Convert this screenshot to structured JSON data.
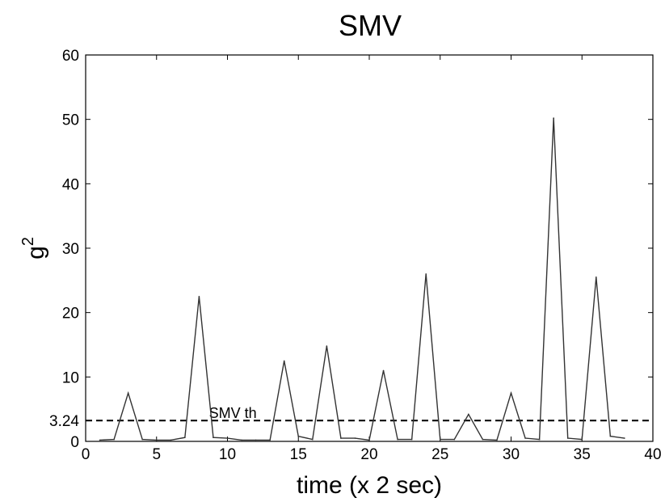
{
  "chart_data": {
    "type": "line",
    "title": "SMV",
    "xlabel": "time (x 2 sec)",
    "ylabel": "g",
    "ylabel_superscript": "2",
    "xlim": [
      0,
      40
    ],
    "ylim": [
      0,
      60
    ],
    "xticks": [
      0,
      5,
      10,
      15,
      20,
      25,
      30,
      35,
      40
    ],
    "yticks": [
      0,
      10,
      20,
      30,
      40,
      50,
      60
    ],
    "extra_ytick": {
      "value": 3.24,
      "label": "3.24"
    },
    "threshold": {
      "value": 3.24,
      "label": "SMV th",
      "style": "dashed"
    },
    "grid": false,
    "series": [
      {
        "x": [
          1,
          2,
          3,
          4,
          5,
          6,
          7,
          8,
          9,
          10,
          11,
          12,
          13,
          14,
          15,
          16,
          17,
          18,
          19,
          20,
          21,
          22,
          23,
          24,
          25,
          26,
          27,
          28,
          29,
          30,
          31,
          32,
          33,
          34,
          35,
          36,
          37,
          38
        ],
        "values": [
          0.2,
          0.3,
          7.5,
          0.3,
          0.2,
          0.2,
          0.6,
          22.5,
          0.6,
          0.5,
          0.2,
          0.2,
          0.2,
          12.5,
          0.8,
          0.3,
          14.8,
          0.5,
          0.5,
          0.2,
          11.0,
          0.3,
          0.3,
          26.0,
          0.3,
          0.3,
          4.2,
          0.3,
          0.2,
          7.5,
          0.5,
          0.3,
          50.2,
          0.5,
          0.3,
          25.5,
          0.8,
          0.5
        ]
      }
    ]
  }
}
